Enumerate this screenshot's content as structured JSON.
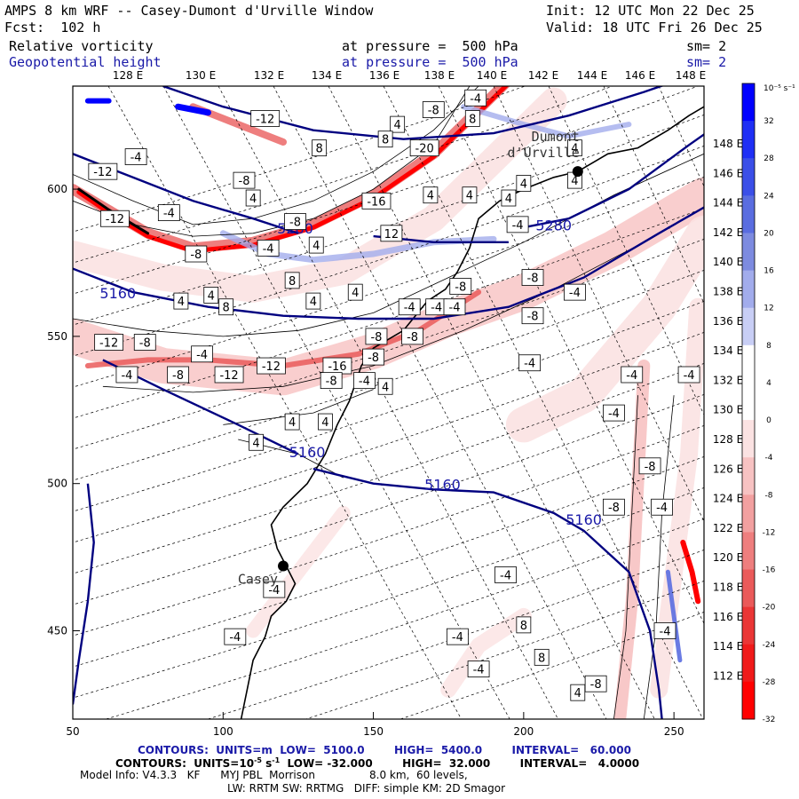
{
  "header": {
    "title": "AMPS 8 km WRF -- Casey-Dumont d'Urville Window",
    "init": "Init: 12 UTC Mon 22 Dec 25",
    "fcst": "Fcst:  102 h",
    "valid": "Valid: 18 UTC Fri 26 Dec 25",
    "field1": {
      "name": "Relative vorticity",
      "level": "at pressure =  500 hPa",
      "sm": "sm= 2"
    },
    "field2": {
      "name": "Geopotential height",
      "level": "at pressure =  500 hPa",
      "sm": "sm= 2"
    }
  },
  "top_lon_labels": [
    "128 E",
    "130 E",
    "132 E",
    "134 E",
    "136 E",
    "138 E",
    "140 E",
    "142 E",
    "144 E",
    "146 E",
    "148 E"
  ],
  "right_lon_labels": [
    "148 E",
    "146 E",
    "144 E",
    "142 E",
    "140 E",
    "138 E",
    "136 E",
    "134 E",
    "132 E",
    "130 E",
    "128 E",
    "126 E",
    "124 E",
    "122 E",
    "120 E",
    "118 E",
    "116 E",
    "114 E",
    "112 E"
  ],
  "x_axis": {
    "ticks": [
      "50",
      "100",
      "150",
      "200",
      "250"
    ]
  },
  "y_axis": {
    "ticks": [
      "600",
      "550",
      "500",
      "450"
    ]
  },
  "colorbar": {
    "unit_label": "10⁻⁵ s⁻¹",
    "labels": [
      "32",
      "28",
      "24",
      "20",
      "16",
      "12",
      "8",
      "4",
      "0",
      "-4",
      "-8",
      "-12",
      "-16",
      "-20",
      "-24",
      "-28",
      "-32"
    ],
    "colors": [
      "#0000ff",
      "#1f2ff5",
      "#3b4fe8",
      "#5a6de0",
      "#7d8be0",
      "#a2acec",
      "#c8cef5",
      "#ffffff",
      "#ffffff",
      "#fbe2e2",
      "#f7c2c2",
      "#f2a0a0",
      "#ee7e7e",
      "#ea5a5a",
      "#ea3636",
      "#f01a1a",
      "#ff0000"
    ]
  },
  "places": [
    {
      "name": "Dumont",
      "x": 218,
      "y": 606
    },
    {
      "name": "d'Urville",
      "x": 218,
      "y": 606
    },
    {
      "name": "Casey",
      "x": 120,
      "y": 472
    }
  ],
  "height_labels": [
    {
      "text": "5280",
      "x": 124,
      "y": 585
    },
    {
      "text": "5280",
      "x": 210,
      "y": 586
    },
    {
      "text": "5160",
      "x": 65,
      "y": 563
    },
    {
      "text": "5160",
      "x": 128,
      "y": 509
    },
    {
      "text": "5160",
      "x": 173,
      "y": 498
    },
    {
      "text": "5160",
      "x": 220,
      "y": 486
    }
  ],
  "vort_labels": [
    {
      "t": "-12",
      "x": 114,
      "y": 624
    },
    {
      "t": "-8",
      "x": 170,
      "y": 627
    },
    {
      "t": "-4",
      "x": 184,
      "y": 631
    },
    {
      "t": "-4",
      "x": 71,
      "y": 611
    },
    {
      "t": "-12",
      "x": 60,
      "y": 606
    },
    {
      "t": "-8",
      "x": 107,
      "y": 603
    },
    {
      "t": "-20",
      "x": 167,
      "y": 614
    },
    {
      "t": "-16",
      "x": 151,
      "y": 596
    },
    {
      "t": "-4",
      "x": 82,
      "y": 592
    },
    {
      "t": "-12",
      "x": 64,
      "y": 590
    },
    {
      "t": "-8",
      "x": 124,
      "y": 589
    },
    {
      "t": "-8",
      "x": 91,
      "y": 578
    },
    {
      "t": "-4",
      "x": 115,
      "y": 580
    },
    {
      "t": "-4",
      "x": 198,
      "y": 588
    },
    {
      "t": "-8",
      "x": 203,
      "y": 570
    },
    {
      "t": "-4",
      "x": 217,
      "y": 565
    },
    {
      "t": "-8",
      "x": 179,
      "y": 567
    },
    {
      "t": "-4",
      "x": 162,
      "y": 560
    },
    {
      "t": "-4",
      "x": 171,
      "y": 560
    },
    {
      "t": "-4",
      "x": 177,
      "y": 560
    },
    {
      "t": "-8",
      "x": 203,
      "y": 557
    },
    {
      "t": "-8",
      "x": 151,
      "y": 550
    },
    {
      "t": "-8",
      "x": 163,
      "y": 550
    },
    {
      "t": "-12",
      "x": 62,
      "y": 548
    },
    {
      "t": "-8",
      "x": 74,
      "y": 548
    },
    {
      "t": "-4",
      "x": 93,
      "y": 544
    },
    {
      "t": "-12",
      "x": 116,
      "y": 540
    },
    {
      "t": "-16",
      "x": 138,
      "y": 540
    },
    {
      "t": "-8",
      "x": 150,
      "y": 543
    },
    {
      "t": "-4",
      "x": 68,
      "y": 537
    },
    {
      "t": "-8",
      "x": 85,
      "y": 537
    },
    {
      "t": "-12",
      "x": 102,
      "y": 537
    },
    {
      "t": "-8",
      "x": 136,
      "y": 535
    },
    {
      "t": "-4",
      "x": 147,
      "y": 535
    },
    {
      "t": "-4",
      "x": 202,
      "y": 541
    },
    {
      "t": "-4",
      "x": 236,
      "y": 537
    },
    {
      "t": "-4",
      "x": 255,
      "y": 537
    },
    {
      "t": "-4",
      "x": 230,
      "y": 524
    },
    {
      "t": "-8",
      "x": 242,
      "y": 506
    },
    {
      "t": "-4",
      "x": 246,
      "y": 492
    },
    {
      "t": "-8",
      "x": 230,
      "y": 492
    },
    {
      "t": "-4",
      "x": 194,
      "y": 469
    },
    {
      "t": "-4",
      "x": 117,
      "y": 464
    },
    {
      "t": "-4",
      "x": 104,
      "y": 448
    },
    {
      "t": "-4",
      "x": 178,
      "y": 448
    },
    {
      "t": "-4",
      "x": 185,
      "y": 437
    },
    {
      "t": "-4",
      "x": 247,
      "y": 450
    },
    {
      "t": "-8",
      "x": 224,
      "y": 432
    }
  ],
  "vort_pos_labels": [
    {
      "t": "8",
      "x": 183,
      "y": 624
    },
    {
      "t": "4",
      "x": 158,
      "y": 622
    },
    {
      "t": "8",
      "x": 154,
      "y": 617
    },
    {
      "t": "8",
      "x": 132,
      "y": 614
    },
    {
      "t": "4",
      "x": 217,
      "y": 603
    },
    {
      "t": "4",
      "x": 200,
      "y": 602
    },
    {
      "t": "4",
      "x": 195,
      "y": 597
    },
    {
      "t": "4",
      "x": 182,
      "y": 598
    },
    {
      "t": "4",
      "x": 169,
      "y": 598
    },
    {
      "t": "4",
      "x": 110,
      "y": 597
    },
    {
      "t": "12",
      "x": 156,
      "y": 585
    },
    {
      "t": "4",
      "x": 131,
      "y": 581
    },
    {
      "t": "8",
      "x": 123,
      "y": 569
    },
    {
      "t": "4",
      "x": 144,
      "y": 565
    },
    {
      "t": "4",
      "x": 86,
      "y": 562
    },
    {
      "t": "4",
      "x": 96,
      "y": 564
    },
    {
      "t": "4",
      "x": 130,
      "y": 562
    },
    {
      "t": "8",
      "x": 101,
      "y": 560
    },
    {
      "t": "4",
      "x": 134,
      "y": 521
    },
    {
      "t": "4",
      "x": 123,
      "y": 521
    },
    {
      "t": "4",
      "x": 111,
      "y": 514
    },
    {
      "t": "4",
      "x": 154,
      "y": 533
    },
    {
      "t": "8",
      "x": 200,
      "y": 452
    },
    {
      "t": "8",
      "x": 206,
      "y": 441
    },
    {
      "t": "4",
      "x": 218,
      "y": 429
    },
    {
      "t": "4",
      "x": 217,
      "y": 614
    }
  ]
}
